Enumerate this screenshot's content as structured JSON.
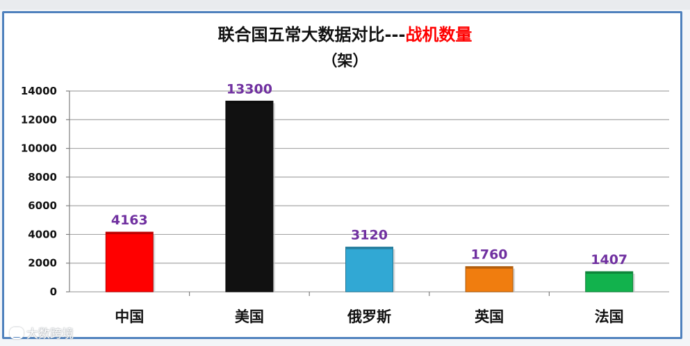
{
  "chart_data": {
    "type": "bar",
    "title": "联合国五常大数据对比---",
    "title_highlight": "战机数量",
    "subtitle": "（架）",
    "categories": [
      "中国",
      "美国",
      "俄罗斯",
      "英国",
      "法国"
    ],
    "values": [
      4163,
      13300,
      3120,
      1760,
      1407
    ],
    "data_labels": [
      "4163",
      "13300",
      "3120",
      "1760",
      "1407"
    ],
    "bar_colors": [
      "#ff0000",
      "#111111",
      "#31a8d4",
      "#f07d0f",
      "#12b24d"
    ],
    "yticks": [
      0,
      2000,
      4000,
      6000,
      8000,
      10000,
      12000,
      14000
    ],
    "ylim": [
      0,
      14000
    ],
    "grid": true,
    "legend": "none",
    "label_color": "#7030a0",
    "title_accent_color": "#ff0000"
  },
  "watermark": {
    "icon": "chat-bubble-icon",
    "text": "大数跨境"
  }
}
